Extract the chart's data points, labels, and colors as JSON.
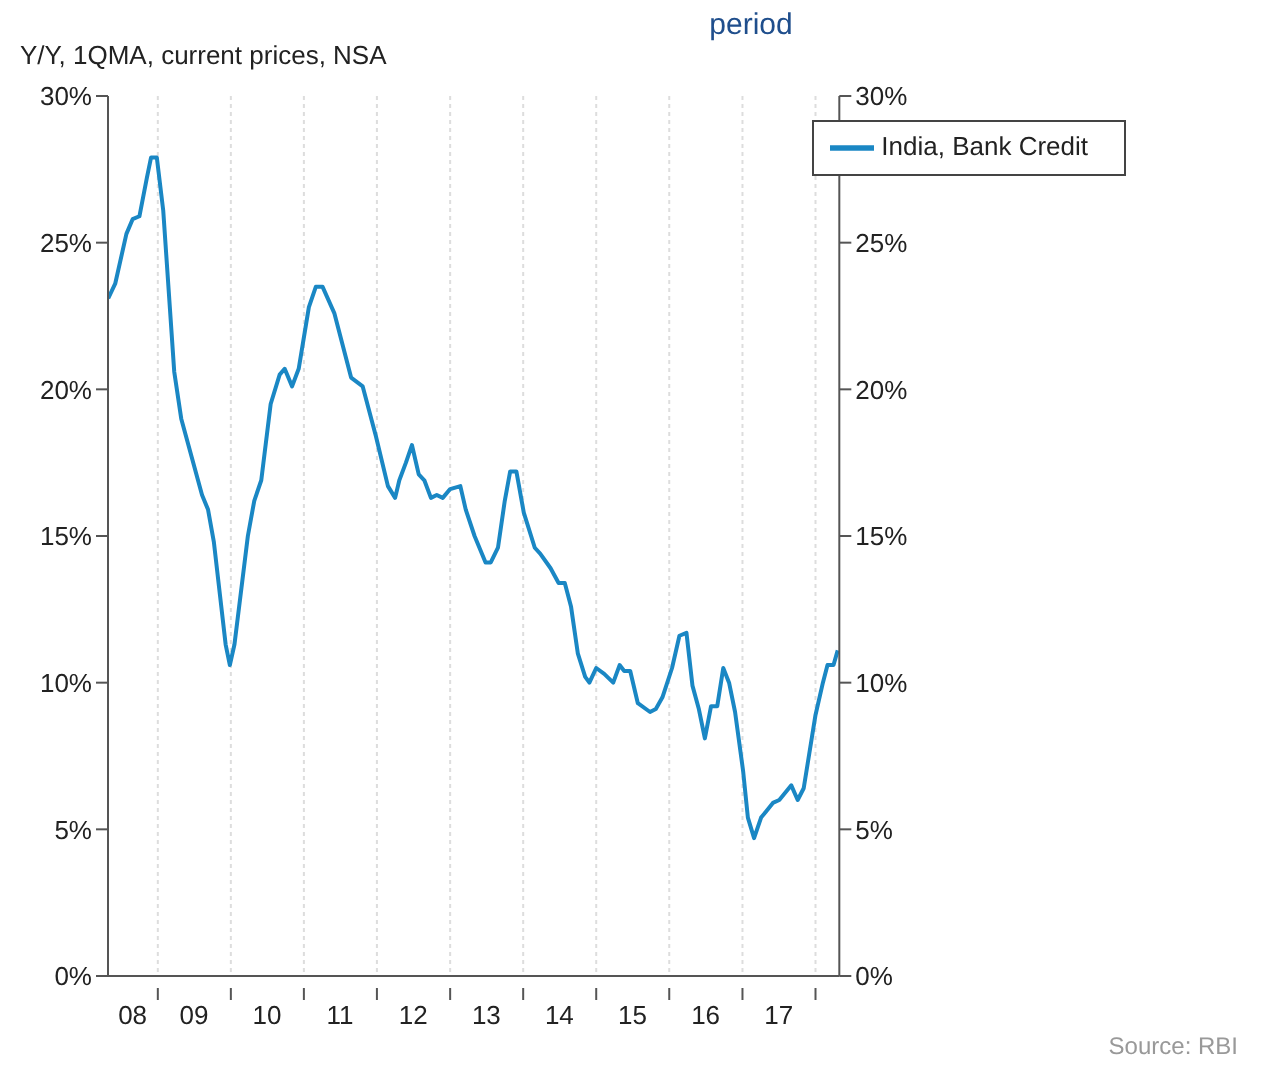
{
  "chart_data": {
    "type": "line",
    "title": "period",
    "ylabel": "Y/Y, 1QMA, current prices, NSA",
    "annotations": [
      "Source: RBI"
    ],
    "x": [
      "2008-04-28",
      "2008-06-02",
      "2008-07-28",
      "2008-08-28",
      "2008-10-01",
      "2008-11-07",
      "2008-11-28",
      "2008-12-27",
      "2009-01-28",
      "2009-03-24",
      "2009-04-28",
      "2009-08-10",
      "2009-09-09",
      "2009-10-08",
      "2009-12-06",
      "2009-12-27",
      "2010-01-19",
      "2010-03-27",
      "2010-04-28",
      "2010-06-02",
      "2010-07-19",
      "2010-09-02",
      "2010-09-27",
      "2010-11-03",
      "2010-12-06",
      "2011-01-26",
      "2011-03-02",
      "2011-04-04",
      "2011-06-02",
      "2011-08-25",
      "2011-10-22",
      "2011-12-27",
      "2012-02-25",
      "2012-04-01",
      "2012-04-22",
      "2012-05-25",
      "2012-06-24",
      "2012-07-28",
      "2012-08-25",
      "2012-09-27",
      "2012-10-26",
      "2012-11-25",
      "2013-01-01",
      "2013-02-21",
      "2013-03-20",
      "2013-05-03",
      "2013-06-27",
      "2013-07-23",
      "2013-08-28",
      "2013-10-01",
      "2013-10-28",
      "2013-11-28",
      "2014-01-04",
      "2014-02-28",
      "2014-03-27",
      "2014-05-18",
      "2014-06-27",
      "2014-07-28",
      "2014-08-28",
      "2014-10-01",
      "2014-11-07",
      "2014-11-28",
      "2015-01-01",
      "2015-02-10",
      "2015-03-27",
      "2015-04-28",
      "2015-05-21",
      "2015-06-20",
      "2015-07-28",
      "2015-09-27",
      "2015-10-26",
      "2015-11-28",
      "2016-01-15",
      "2016-02-21",
      "2016-03-27",
      "2016-04-26",
      "2016-05-28",
      "2016-06-27",
      "2016-07-28",
      "2016-08-28",
      "2016-09-27",
      "2016-10-26",
      "2016-11-25",
      "2017-01-04",
      "2017-01-28",
      "2017-02-28",
      "2017-04-04",
      "2017-04-28",
      "2017-06-02",
      "2017-07-04",
      "2017-09-02",
      "2017-10-04",
      "2017-11-03",
      "2018-01-01",
      "2018-02-07",
      "2018-03-02",
      "2018-04-01",
      "2018-04-22"
    ],
    "series": [
      {
        "name": "India, Bank Credit",
        "color": "#1a87c4",
        "values": [
          23.1,
          23.6,
          25.3,
          25.8,
          25.9,
          27.2,
          27.9,
          27.9,
          26.1,
          20.6,
          19.0,
          16.4,
          15.9,
          14.8,
          11.3,
          10.6,
          11.3,
          15.0,
          16.2,
          16.9,
          19.5,
          20.5,
          20.7,
          20.1,
          20.7,
          22.8,
          23.5,
          23.5,
          22.6,
          20.4,
          20.1,
          18.4,
          16.7,
          16.3,
          16.9,
          17.5,
          18.1,
          17.1,
          16.9,
          16.3,
          16.4,
          16.3,
          16.6,
          16.7,
          15.9,
          15.0,
          14.1,
          14.1,
          14.6,
          16.2,
          17.2,
          17.2,
          15.8,
          14.6,
          14.4,
          13.9,
          13.4,
          13.4,
          12.6,
          11.0,
          10.2,
          10.0,
          10.5,
          10.3,
          10.0,
          10.6,
          10.4,
          10.4,
          9.3,
          9.0,
          9.1,
          9.5,
          10.5,
          11.6,
          11.7,
          9.9,
          9.1,
          8.1,
          9.2,
          9.2,
          10.5,
          10.0,
          9.0,
          7.0,
          5.4,
          4.7,
          5.4,
          5.6,
          5.9,
          6.0,
          6.5,
          6.0,
          6.4,
          8.9,
          10.0,
          10.6,
          10.6,
          11.1
        ]
      }
    ],
    "xlim": [
      "2008-04-27",
      "2018-04-30"
    ],
    "xticks": [
      {
        "value": "2008-08-28",
        "label": "08"
      },
      {
        "value": "2009",
        "label": null
      },
      {
        "value": "2009-07-01",
        "label": "09"
      },
      {
        "value": "2010",
        "label": null
      },
      {
        "value": "2010-07-01",
        "label": "10"
      },
      {
        "value": "2011",
        "label": null
      },
      {
        "value": "2011-07-01",
        "label": "11"
      },
      {
        "value": "2012",
        "label": null
      },
      {
        "value": "2012-07-01",
        "label": "12"
      },
      {
        "value": "2013",
        "label": null
      },
      {
        "value": "2013-07-01",
        "label": "13"
      },
      {
        "value": "2014",
        "label": null
      },
      {
        "value": "2014-07-01",
        "label": "14"
      },
      {
        "value": "2015",
        "label": null
      },
      {
        "value": "2015-07-01",
        "label": "15"
      },
      {
        "value": "2016",
        "label": null
      },
      {
        "value": "2016-07-01",
        "label": "16"
      },
      {
        "value": "2017",
        "label": null
      },
      {
        "value": "2017-07-01",
        "label": "17"
      },
      {
        "value": "2018",
        "label": null
      }
    ],
    "ylim": [
      0,
      30
    ],
    "yticks": [
      {
        "value": 0,
        "label": "0%"
      },
      {
        "value": 5,
        "label": "5%"
      },
      {
        "value": 10,
        "label": "10%"
      },
      {
        "value": 15,
        "label": "15%"
      },
      {
        "value": 20,
        "label": "20%"
      },
      {
        "value": 25,
        "label": "25%"
      },
      {
        "value": 30,
        "label": "30%"
      }
    ],
    "y2lim": [
      0,
      30
    ],
    "y2ticks": [
      {
        "value": 0,
        "label": "0%"
      },
      {
        "value": 5,
        "label": "5%"
      },
      {
        "value": 10,
        "label": "10%"
      },
      {
        "value": 15,
        "label": "15%"
      },
      {
        "value": 20,
        "label": "20%"
      },
      {
        "value": 25,
        "label": "25%"
      },
      {
        "value": 30,
        "label": "30%"
      }
    ],
    "grid": true,
    "legend": "top right",
    "marker": "none",
    "line_style": "solid"
  }
}
